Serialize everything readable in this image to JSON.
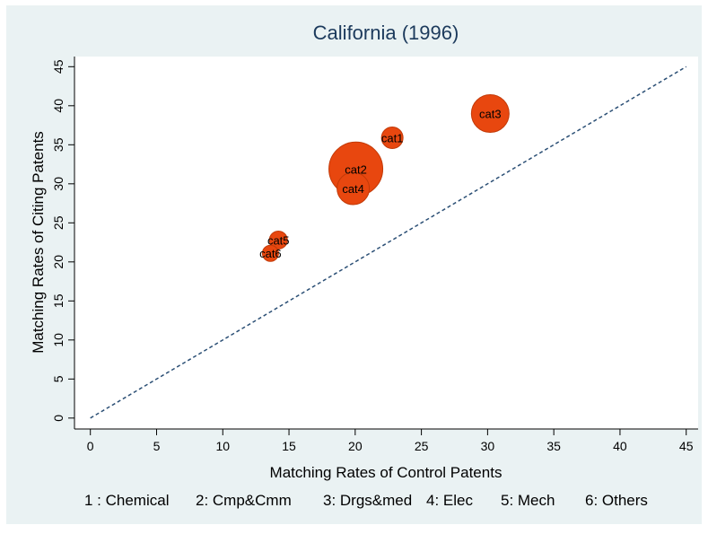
{
  "chart_data": {
    "type": "bubble",
    "title": "California (1996)",
    "x_label": "Matching Rates of Control Patents",
    "y_label": "Matching Rates of Citing Patents",
    "point_labels": [
      "cat1",
      "cat2",
      "cat3",
      "cat4",
      "cat5",
      "cat6"
    ],
    "x": [
      22.8,
      20.05,
      30.2,
      19.85,
      14.2,
      13.6
    ],
    "values": [
      35.9,
      31.9,
      39.0,
      29.4,
      22.8,
      21.1
    ],
    "sizes": [
      144,
      900,
      441,
      324,
      100,
      81
    ],
    "color": "#e8470f",
    "reference_line": {
      "x": [
        0,
        45
      ],
      "y": [
        0,
        45
      ],
      "color": "#2b4f75"
    },
    "xlim": [
      -1.2,
      45.9
    ],
    "ylim": [
      -1.4,
      46.3
    ],
    "xticks": [
      0,
      5,
      10,
      15,
      20,
      25,
      30,
      35,
      40,
      45
    ],
    "yticks": [
      0,
      5,
      10,
      15,
      20,
      25,
      30,
      35,
      40,
      45
    ],
    "note": [
      "1 : Chemical",
      "2: Cmp&Cmm",
      "3: Drgs&med",
      "4: Elec",
      "5: Mech",
      "6: Others"
    ]
  }
}
